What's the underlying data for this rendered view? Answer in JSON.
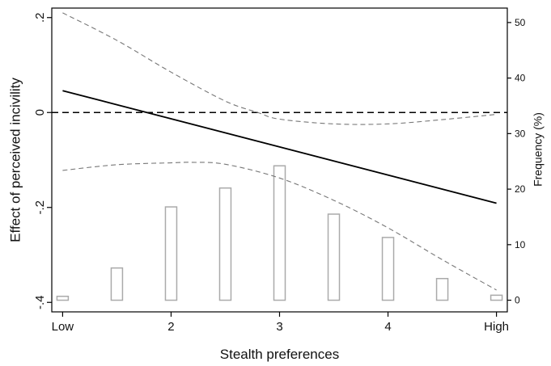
{
  "chart_data": {
    "type": "line",
    "xlabel": "Stealth preferences",
    "ylabel": "Effect of perceived incivility",
    "y2label": "Frequency (%)",
    "x_ticks": [
      {
        "value": 1,
        "label": "Low"
      },
      {
        "value": 2,
        "label": "2"
      },
      {
        "value": 3,
        "label": "3"
      },
      {
        "value": 4,
        "label": "4"
      },
      {
        "value": 5,
        "label": "High"
      }
    ],
    "y_ticks": [
      {
        "value": 0.2,
        "label": ".2"
      },
      {
        "value": 0,
        "label": "0"
      },
      {
        "value": -0.2,
        "label": "-.2"
      },
      {
        "value": -0.4,
        "label": "-.4"
      }
    ],
    "y2_ticks": [
      {
        "value": 0,
        "label": "0"
      },
      {
        "value": 10,
        "label": "10"
      },
      {
        "value": 20,
        "label": "20"
      },
      {
        "value": 30,
        "label": "30"
      },
      {
        "value": 40,
        "label": "40"
      },
      {
        "value": 50,
        "label": "50"
      }
    ],
    "xlim": [
      0.9,
      5.1
    ],
    "ylim": [
      -0.42,
      0.22
    ],
    "y2lim": [
      -2.1,
      52.6
    ],
    "reference_line_y": 0,
    "colors": {
      "effect_line": "#000000",
      "ci_line": "#777777",
      "bars": "#aaaaaa",
      "reference_line": "#000000"
    },
    "series": [
      {
        "role": "effect",
        "style": "solid",
        "x": [
          1,
          5
        ],
        "y": [
          0.046,
          -0.191
        ]
      },
      {
        "role": "ci_upper",
        "style": "dashed",
        "x": [
          1,
          1.5,
          2,
          2.5,
          2.8,
          3,
          3.5,
          4,
          4.5,
          5
        ],
        "y": [
          0.21,
          0.152,
          0.085,
          0.024,
          0.0,
          -0.014,
          -0.024,
          -0.024,
          -0.015,
          -0.004
        ]
      },
      {
        "role": "ci_lower",
        "style": "dashed",
        "x": [
          1,
          1.5,
          2,
          2.2,
          2.5,
          3,
          3.5,
          4,
          4.5,
          5
        ],
        "y": [
          -0.122,
          -0.11,
          -0.106,
          -0.105,
          -0.109,
          -0.138,
          -0.185,
          -0.243,
          -0.31,
          -0.374
        ]
      },
      {
        "role": "frequency",
        "type": "bar",
        "axis": "right",
        "x": [
          1,
          1.5,
          2,
          2.5,
          3,
          3.5,
          4,
          4.5,
          5
        ],
        "values": [
          0.7,
          5.8,
          16.8,
          20.2,
          24.2,
          15.5,
          11.3,
          3.9,
          0.9
        ]
      }
    ]
  }
}
